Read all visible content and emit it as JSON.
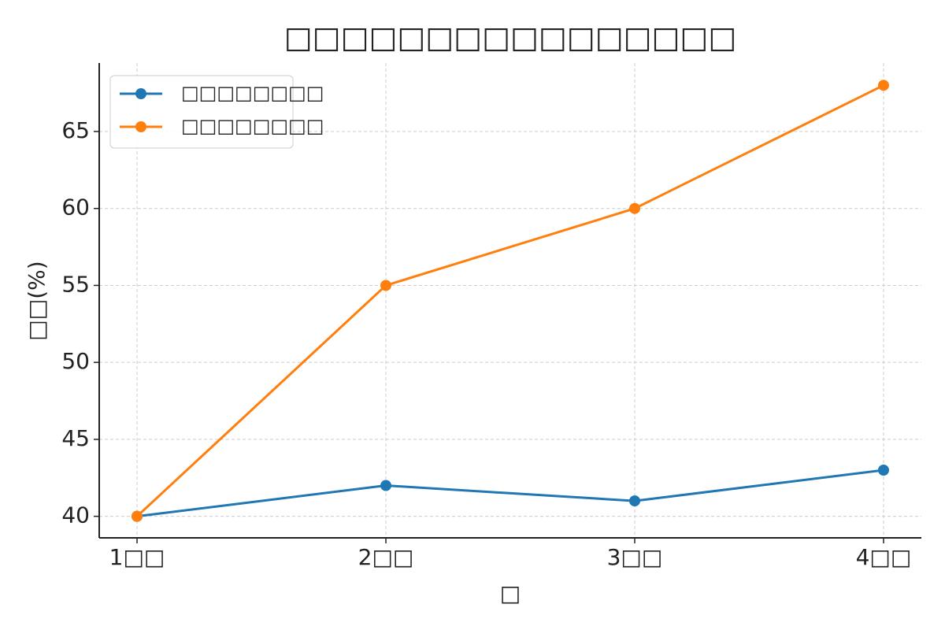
{
  "chart_data": {
    "type": "line",
    "title": "□□□□□□□□□□□□□□□□",
    "x_label": "□",
    "y_label": "□□(%)",
    "categories": [
      "1□□",
      "2□□",
      "3□□",
      "4□□"
    ],
    "series": [
      {
        "name": "□□□□□□□□",
        "color": "#1f77b4",
        "values": [
          40,
          42,
          41,
          43
        ]
      },
      {
        "name": "□□□□□□□□",
        "color": "#ff7f0e",
        "values": [
          40,
          55,
          60,
          68
        ]
      }
    ],
    "ylim": [
      38.6,
      69.45
    ],
    "yticks": [
      40,
      45,
      50,
      55,
      60,
      65
    ],
    "grid": true,
    "legend": "upper left"
  }
}
